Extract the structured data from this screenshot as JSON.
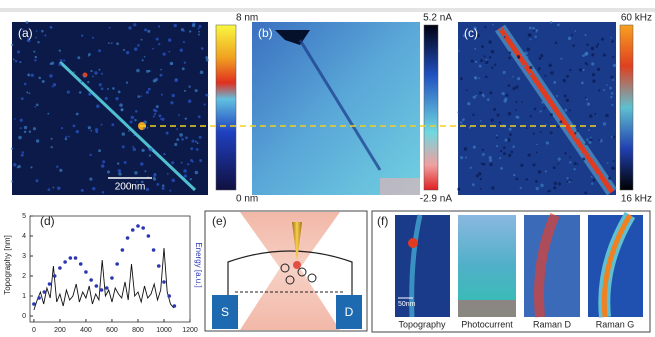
{
  "panels": {
    "a": {
      "label": "(a)",
      "scale_bar": "200nm",
      "colorbar_max": "8 nm",
      "colorbar_min": "0 nm"
    },
    "b": {
      "label": "(b)",
      "colorbar_max": "5.2 nA",
      "colorbar_min": "-2.9 nA"
    },
    "c": {
      "label": "(c)",
      "colorbar_max": "60 kHz",
      "colorbar_min": "16 kHz"
    },
    "e": {
      "label": "(e)",
      "source": "S",
      "drain": "D"
    },
    "f": {
      "label": "(f)",
      "scale_bar": "50nm",
      "images": [
        "Topography",
        "Photocurrent",
        "Raman D",
        "Raman G"
      ]
    }
  },
  "chart_data": {
    "type": "line",
    "label": "(d)",
    "y_label": "Topography [nm]",
    "y2_label": "Energy [a.u.]",
    "xlim": [
      -30,
      1200
    ],
    "xticks": [
      0,
      200,
      400,
      600,
      800,
      1000,
      1200
    ],
    "ylim": [
      -0.3,
      5
    ],
    "yticks": [
      0,
      1,
      2,
      3,
      4,
      5
    ],
    "series": [
      {
        "color": "#111111",
        "style": "line",
        "x": [
          0,
          25,
          50,
          75,
          100,
          125,
          150,
          175,
          200,
          225,
          250,
          275,
          300,
          325,
          350,
          375,
          400,
          425,
          450,
          475,
          500,
          525,
          550,
          575,
          600,
          625,
          650,
          675,
          700,
          725,
          750,
          775,
          800,
          825,
          850,
          875,
          900,
          925,
          950,
          975,
          1000,
          1025,
          1050,
          1075
        ],
        "values": [
          0.3,
          0.8,
          1.2,
          0.6,
          1.4,
          0.9,
          2.5,
          0.7,
          1.1,
          0.5,
          1.3,
          0.8,
          1.0,
          1.6,
          0.7,
          1.2,
          0.9,
          1.5,
          0.6,
          1.1,
          0.8,
          2.8,
          1.0,
          1.3,
          0.7,
          1.4,
          1.1,
          0.9,
          1.7,
          0.8,
          2.6,
          1.0,
          1.2,
          0.7,
          1.5,
          0.9,
          1.1,
          1.6,
          0.8,
          1.3,
          3.4,
          1.2,
          0.6,
          0.4
        ]
      },
      {
        "color": "#2b36b0",
        "style": "dots",
        "x": [
          0,
          40,
          80,
          120,
          160,
          200,
          240,
          280,
          320,
          360,
          400,
          440,
          480,
          520,
          560,
          600,
          640,
          680,
          720,
          760,
          800,
          840,
          880,
          920,
          960,
          1000,
          1040,
          1080
        ],
        "values": [
          0.6,
          0.9,
          1.2,
          1.6,
          2.0,
          2.4,
          2.7,
          2.9,
          2.9,
          2.6,
          2.2,
          1.8,
          1.5,
          1.3,
          1.4,
          1.9,
          2.6,
          3.3,
          3.9,
          4.3,
          4.5,
          4.4,
          4.0,
          3.3,
          2.5,
          1.7,
          1.0,
          0.5
        ]
      }
    ]
  }
}
